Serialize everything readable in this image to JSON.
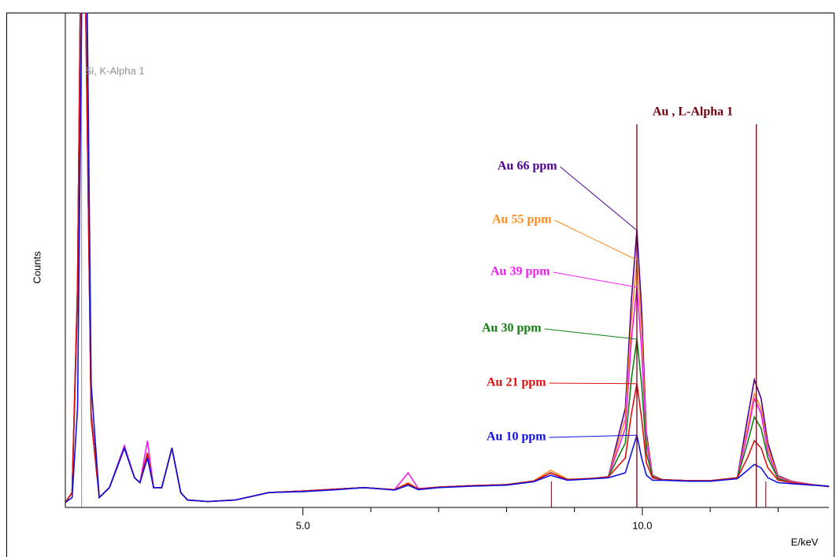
{
  "chart_data": {
    "type": "line",
    "ylabel": "Counts",
    "xlabel": "E/keV",
    "xlim": [
      1.5,
      12.75
    ],
    "ylim": [
      0,
      100
    ],
    "xticks": [
      {
        "value": 5,
        "label": "5.0"
      },
      {
        "value": 10,
        "label": "10.0"
      }
    ],
    "xminor_ticks": [
      6,
      7,
      8,
      9,
      11,
      12
    ],
    "element_lines": [
      {
        "label": "Si, K-Alpha 1",
        "x": 1.74,
        "color": "#909090"
      }
    ],
    "au_label": "Au , L-Alpha 1",
    "au_lines": [
      9.92,
      11.68
    ],
    "minor_lines": [
      8.66,
      11.82
    ],
    "line_color": "#700010",
    "x": [
      1.5,
      1.6,
      1.68,
      1.74,
      1.8,
      1.88,
      2.0,
      2.15,
      2.37,
      2.52,
      2.6,
      2.71,
      2.8,
      2.92,
      3.07,
      3.2,
      3.3,
      3.6,
      4.0,
      4.5,
      5.0,
      5.5,
      5.9,
      6.35,
      6.55,
      6.7,
      7.0,
      7.5,
      8.0,
      8.4,
      8.65,
      8.9,
      9.3,
      9.5,
      9.75,
      9.84,
      9.92,
      9.99,
      10.06,
      10.15,
      10.3,
      10.7,
      11.0,
      11.4,
      11.55,
      11.65,
      11.75,
      11.85,
      12.0,
      12.2,
      12.5,
      12.75
    ],
    "series": [
      {
        "name": "Au 66 ppm",
        "color": "#500090",
        "values": [
          1,
          3,
          42,
          130,
          105,
          19,
          2,
          4,
          12,
          6,
          5,
          10.5,
          4,
          4,
          12,
          3,
          1.5,
          1.2,
          1.5,
          3,
          3.3,
          3.7,
          4,
          3.6,
          4.8,
          3.7,
          4.1,
          4.4,
          4.6,
          5.3,
          7,
          5.6,
          5.9,
          6.2,
          20,
          42,
          56,
          40,
          15,
          6.5,
          5.6,
          5.4,
          5.4,
          6,
          18,
          25.8,
          22,
          13,
          6.4,
          5.3,
          4.6,
          4.3
        ]
      },
      {
        "name": "Au 55 ppm",
        "color": "#ff8c20",
        "values": [
          1,
          3,
          44,
          130,
          102,
          18,
          2,
          4,
          12,
          6,
          5,
          11,
          4,
          4,
          12,
          3,
          1.5,
          1.2,
          1.5,
          3,
          3.3,
          3.7,
          4,
          3.6,
          5,
          3.7,
          4.1,
          4.4,
          4.6,
          5.4,
          7.5,
          5.7,
          5.9,
          6.2,
          18,
          38,
          50,
          36,
          14,
          6.4,
          5.6,
          5.4,
          5.4,
          6,
          16,
          23,
          20,
          12,
          6.2,
          5.2,
          4.6,
          4.3
        ]
      },
      {
        "name": "Au 39 ppm",
        "color": "#f020f0",
        "values": [
          1,
          3,
          45,
          130,
          100,
          18,
          2,
          4,
          12.5,
          6,
          5,
          13.5,
          4,
          4,
          12,
          3,
          1.5,
          1.2,
          1.5,
          3,
          3.3,
          3.7,
          4,
          3.6,
          7,
          3.8,
          4.1,
          4.4,
          4.6,
          5.3,
          7,
          5.6,
          5.9,
          6.2,
          16,
          34,
          44.5,
          32,
          13,
          6.3,
          5.6,
          5.4,
          5.4,
          6,
          15,
          22,
          19,
          11,
          6,
          5.1,
          4.6,
          4.2
        ]
      },
      {
        "name": "Au 30 ppm",
        "color": "#108010",
        "values": [
          1,
          3,
          44,
          130,
          102,
          18,
          2,
          4,
          12,
          6,
          5,
          11,
          4,
          4,
          12,
          3,
          1.5,
          1.2,
          1.5,
          3,
          3.3,
          3.7,
          4,
          3.6,
          4.8,
          3.7,
          4.1,
          4.4,
          4.6,
          5.3,
          7,
          5.6,
          5.9,
          6.2,
          13,
          26,
          34,
          25,
          11,
          6.2,
          5.6,
          5.4,
          5.4,
          6,
          13,
          18.3,
          16,
          10,
          5.8,
          5,
          4.6,
          4.3
        ]
      },
      {
        "name": "Au 21 ppm",
        "color": "#e01010",
        "values": [
          1,
          3,
          45,
          130,
          100,
          18,
          2,
          4,
          12,
          6,
          5,
          11,
          4,
          4,
          12,
          3,
          1.5,
          1.2,
          1.5,
          3,
          3.3,
          3.7,
          4,
          3.6,
          4.8,
          3.7,
          4.1,
          4.4,
          4.6,
          5.3,
          7,
          5.6,
          5.9,
          6.2,
          10,
          19,
          25,
          18,
          9,
          6,
          5.6,
          5.4,
          5.4,
          6,
          10,
          13.5,
          12,
          8,
          5.5,
          5,
          4.6,
          4.2
        ]
      },
      {
        "name": "Au 10 ppm",
        "color": "#1010e0",
        "values": [
          1,
          2,
          20,
          100,
          130,
          25,
          2,
          4,
          12,
          6,
          5,
          10,
          4,
          4,
          12,
          3,
          1.5,
          1.2,
          1.5,
          3,
          3.2,
          3.6,
          4,
          3.5,
          4.5,
          3.6,
          4,
          4.3,
          4.5,
          5.2,
          6.5,
          5.5,
          5.8,
          6,
          7,
          11,
          14.6,
          10,
          6.5,
          5.5,
          5.5,
          5.3,
          5.3,
          5.8,
          7.5,
          8.7,
          8,
          6,
          5,
          4.8,
          4.5,
          4.3
        ]
      }
    ]
  }
}
